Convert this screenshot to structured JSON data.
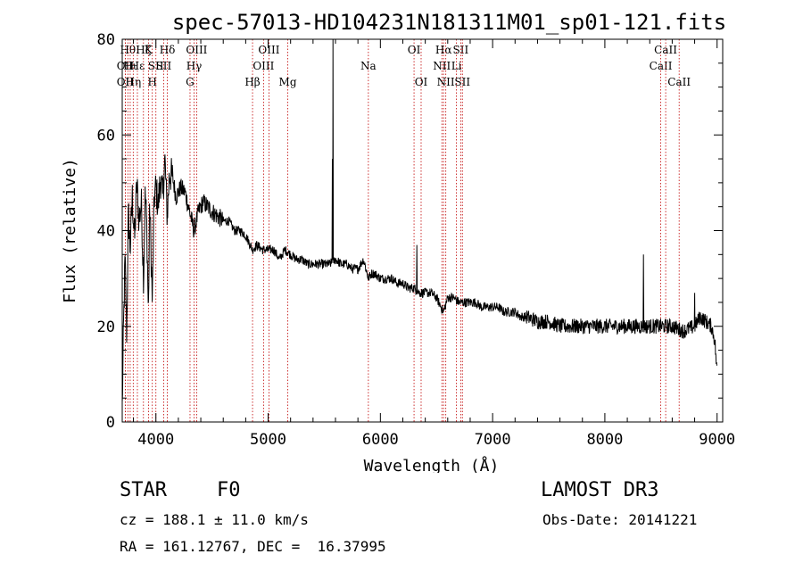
{
  "chart_data": {
    "type": "line",
    "title": "spec-57013-HD104231N181311M01_sp01-121.fits",
    "xlabel": "Wavelength (Å)",
    "ylabel": "Flux (relative)",
    "xlim": [
      3700,
      9050
    ],
    "ylim": [
      0,
      80
    ],
    "xticks": [
      4000,
      5000,
      6000,
      7000,
      8000,
      9000
    ],
    "yticks": [
      0,
      20,
      40,
      60,
      80
    ],
    "spectrum_nodes": [
      [
        3700,
        3
      ],
      [
        3712,
        20
      ],
      [
        3725,
        34
      ],
      [
        3740,
        18
      ],
      [
        3755,
        44
      ],
      [
        3770,
        36
      ],
      [
        3790,
        47
      ],
      [
        3810,
        38
      ],
      [
        3830,
        50
      ],
      [
        3850,
        42
      ],
      [
        3870,
        46
      ],
      [
        3890,
        30
      ],
      [
        3905,
        48
      ],
      [
        3920,
        40
      ],
      [
        3933,
        22
      ],
      [
        3945,
        46
      ],
      [
        3968,
        25
      ],
      [
        3985,
        47
      ],
      [
        4000,
        49
      ],
      [
        4020,
        45
      ],
      [
        4040,
        51
      ],
      [
        4060,
        47
      ],
      [
        4080,
        55
      ],
      [
        4101,
        43
      ],
      [
        4120,
        52
      ],
      [
        4150,
        51
      ],
      [
        4180,
        47
      ],
      [
        4220,
        49
      ],
      [
        4260,
        48
      ],
      [
        4300,
        44
      ],
      [
        4340,
        40
      ],
      [
        4380,
        44
      ],
      [
        4420,
        46
      ],
      [
        4460,
        45
      ],
      [
        4500,
        44
      ],
      [
        4550,
        43
      ],
      [
        4600,
        42
      ],
      [
        4650,
        42
      ],
      [
        4700,
        40
      ],
      [
        4750,
        40
      ],
      [
        4800,
        39
      ],
      [
        4861,
        36
      ],
      [
        4900,
        37
      ],
      [
        4950,
        36
      ],
      [
        5000,
        36
      ],
      [
        5050,
        36
      ],
      [
        5100,
        34
      ],
      [
        5150,
        36
      ],
      [
        5200,
        35
      ],
      [
        5250,
        34
      ],
      [
        5300,
        34
      ],
      [
        5350,
        33
      ],
      [
        5400,
        33
      ],
      [
        5450,
        33
      ],
      [
        5500,
        33
      ],
      [
        5550,
        33
      ],
      [
        5600,
        34
      ],
      [
        5650,
        33
      ],
      [
        5700,
        33
      ],
      [
        5750,
        32
      ],
      [
        5800,
        32
      ],
      [
        5850,
        34
      ],
      [
        5893,
        30
      ],
      [
        5920,
        31
      ],
      [
        5950,
        31
      ],
      [
        6000,
        30
      ],
      [
        6050,
        30
      ],
      [
        6100,
        30
      ],
      [
        6150,
        29
      ],
      [
        6200,
        29
      ],
      [
        6250,
        28
      ],
      [
        6300,
        28
      ],
      [
        6350,
        27
      ],
      [
        6400,
        27
      ],
      [
        6450,
        27
      ],
      [
        6500,
        26
      ],
      [
        6563,
        23
      ],
      [
        6600,
        26
      ],
      [
        6650,
        26
      ],
      [
        6700,
        25
      ],
      [
        6750,
        25
      ],
      [
        6800,
        25
      ],
      [
        6850,
        25
      ],
      [
        6900,
        24
      ],
      [
        6950,
        24
      ],
      [
        7000,
        24
      ],
      [
        7050,
        24
      ],
      [
        7100,
        23
      ],
      [
        7150,
        23
      ],
      [
        7200,
        23
      ],
      [
        7250,
        22
      ],
      [
        7300,
        22
      ],
      [
        7400,
        21
      ],
      [
        7500,
        21
      ],
      [
        7600,
        20
      ],
      [
        7700,
        20
      ],
      [
        7800,
        20
      ],
      [
        7900,
        20
      ],
      [
        8000,
        20
      ],
      [
        8100,
        20
      ],
      [
        8200,
        20
      ],
      [
        8300,
        20
      ],
      [
        8400,
        20
      ],
      [
        8500,
        20
      ],
      [
        8600,
        20
      ],
      [
        8700,
        19
      ],
      [
        8800,
        20
      ],
      [
        8850,
        22
      ],
      [
        8900,
        21
      ],
      [
        8950,
        20
      ],
      [
        8980,
        17
      ],
      [
        9000,
        10
      ]
    ],
    "spikes": [
      {
        "x": 5577,
        "y": 80
      },
      {
        "x": 5572,
        "y": 55
      },
      {
        "x": 8345,
        "y": 35
      },
      {
        "x": 8800,
        "y": 27
      },
      {
        "x": 6325,
        "y": 37
      }
    ],
    "line_markers": [
      {
        "x": 3727,
        "label": "OII",
        "row": 2
      },
      {
        "x": 3727,
        "label": "OII",
        "row": 3
      },
      {
        "x": 3750,
        "label": "Hθ",
        "row": 1
      },
      {
        "x": 3771,
        "label": "Hι",
        "row": 2
      },
      {
        "x": 3798,
        "label": "Hη",
        "row": 3
      },
      {
        "x": 3835,
        "label": "Hε",
        "row": 2
      },
      {
        "x": 3889,
        "label": "Hζ",
        "row": 1
      },
      {
        "x": 3934,
        "label": "K",
        "row": 1
      },
      {
        "x": 3968,
        "label": "H",
        "row": 3
      },
      {
        "x": 4000,
        "label": "SII",
        "row": 2
      },
      {
        "x": 4102,
        "label": "Hδ",
        "row": 1
      },
      {
        "x": 4069,
        "label": "SII",
        "row": 2
      },
      {
        "x": 4304,
        "label": "G",
        "row": 3
      },
      {
        "x": 4340,
        "label": "Hγ",
        "row": 2
      },
      {
        "x": 4363,
        "label": "OIII",
        "row": 1
      },
      {
        "x": 4861,
        "label": "Hβ",
        "row": 3
      },
      {
        "x": 4959,
        "label": "OIII",
        "row": 2
      },
      {
        "x": 5007,
        "label": "OIII",
        "row": 1
      },
      {
        "x": 5175,
        "label": "Mg",
        "row": 3
      },
      {
        "x": 5893,
        "label": "Na",
        "row": 2
      },
      {
        "x": 6300,
        "label": "OI",
        "row": 1
      },
      {
        "x": 6363,
        "label": "OI",
        "row": 3
      },
      {
        "x": 6548,
        "label": "NII",
        "row": 2
      },
      {
        "x": 6563,
        "label": "Hα",
        "row": 1
      },
      {
        "x": 6583,
        "label": "NII",
        "row": 3
      },
      {
        "x": 6678,
        "label": "Li",
        "row": 2
      },
      {
        "x": 6716,
        "label": "SII",
        "row": 1
      },
      {
        "x": 6731,
        "label": "SII",
        "row": 3
      },
      {
        "x": 8498,
        "label": "CaII",
        "row": 2
      },
      {
        "x": 8542,
        "label": "CaII",
        "row": 1
      },
      {
        "x": 8662,
        "label": "CaII",
        "row": 3
      }
    ]
  },
  "info": {
    "class": "STAR",
    "subclass": "F0",
    "survey": "LAMOST DR3",
    "cz": "cz = 188.1 ± 11.0 km/s",
    "obs_date": "Obs-Date: 20141221",
    "radec": "RA = 161.12767, DEC =  16.37995"
  },
  "colors": {
    "spectrum": "#000000",
    "marker_line": "#c00000",
    "axis": "#000000"
  }
}
